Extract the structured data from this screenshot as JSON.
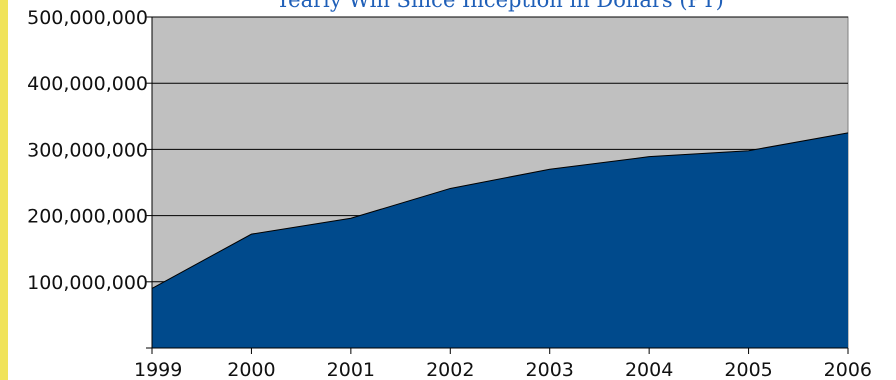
{
  "chart_data": {
    "type": "area",
    "title": "Yearly Win Since Inception in Dollars (PT)",
    "x": [
      "1999",
      "2000",
      "2001",
      "2002",
      "2003",
      "2004",
      "2005",
      "2006"
    ],
    "series": [
      {
        "values": [
          90000000,
          172000000,
          196000000,
          241000000,
          270000000,
          289000000,
          298000000,
          325000000
        ]
      }
    ],
    "ylim": [
      0,
      500000000
    ],
    "y_ticks": [
      0,
      100000000,
      200000000,
      300000000,
      400000000,
      500000000
    ],
    "y_tick_labels": [
      "",
      "100,000,000",
      "200,000,000",
      "300,000,000",
      "400,000,000",
      "500,000,000"
    ],
    "xlabel": "",
    "ylabel": "",
    "grid": true,
    "legend": "none",
    "colors": {
      "plot_background": "#c0c0c0",
      "area_fill": "#004a8c",
      "title_color": "#1f5fb8",
      "gridline": "#000000",
      "stripe": "#f0e35a"
    }
  }
}
